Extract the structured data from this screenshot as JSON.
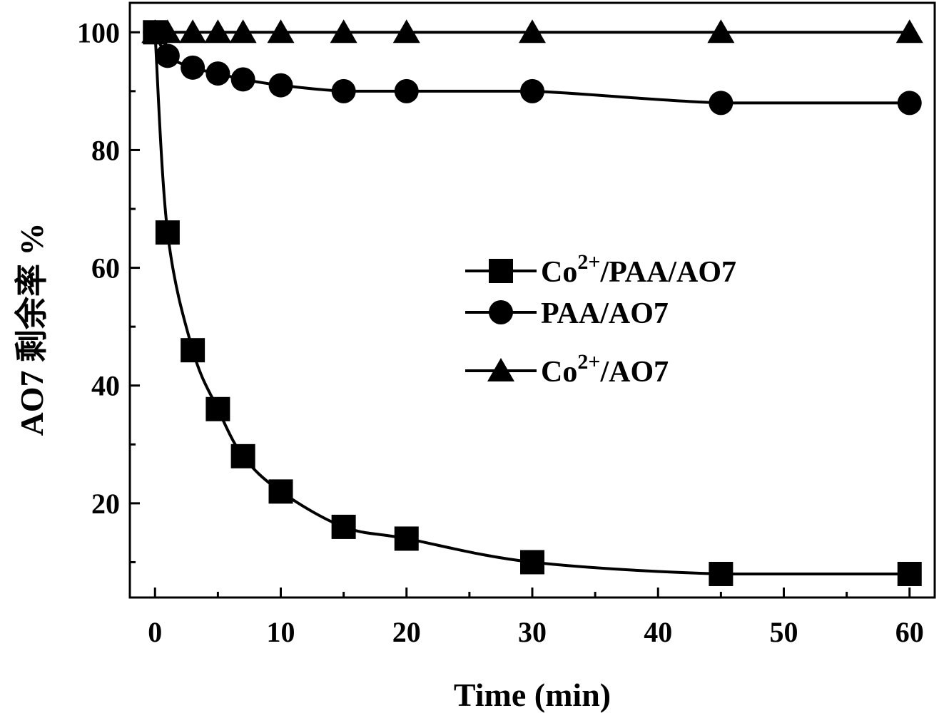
{
  "chart_data": {
    "type": "line",
    "title": "",
    "xlabel": "Time (min)",
    "ylabel": "AO7 剩余率 %",
    "xlim": [
      -2,
      62
    ],
    "ylim": [
      4,
      105
    ],
    "x_ticks": [
      0,
      10,
      20,
      30,
      40,
      50,
      60
    ],
    "y_ticks": [
      20,
      40,
      60,
      80,
      100
    ],
    "x_tick_labels": [
      "0",
      "10",
      "20",
      "30",
      "40",
      "50",
      "60"
    ],
    "y_tick_labels": [
      "20",
      "40",
      "60",
      "80",
      "100"
    ],
    "grid": false,
    "legend_position": "center-right",
    "series": [
      {
        "name_main": "Co",
        "name_sup": "2+",
        "name_rest": "/PAA/AO7",
        "marker": "square",
        "color": "#000000",
        "x": [
          0,
          1,
          3,
          5,
          7,
          10,
          15,
          20,
          30,
          45,
          60
        ],
        "y": [
          100,
          66,
          46,
          36,
          28,
          22,
          16,
          14,
          10,
          8,
          8
        ]
      },
      {
        "name_main": "PAA/AO7",
        "name_sup": "",
        "name_rest": "",
        "marker": "circle",
        "color": "#000000",
        "x": [
          0,
          1,
          3,
          5,
          7,
          10,
          15,
          20,
          30,
          45,
          60
        ],
        "y": [
          100,
          96,
          94,
          93,
          92,
          91,
          90,
          90,
          90,
          88,
          88
        ]
      },
      {
        "name_main": "Co",
        "name_sup": "2+",
        "name_rest": "/AO7",
        "marker": "triangle",
        "color": "#000000",
        "x": [
          0,
          1,
          3,
          5,
          7,
          10,
          15,
          20,
          30,
          45,
          60
        ],
        "y": [
          100,
          100,
          100,
          100,
          100,
          100,
          100,
          100,
          100,
          100,
          100
        ]
      }
    ]
  }
}
